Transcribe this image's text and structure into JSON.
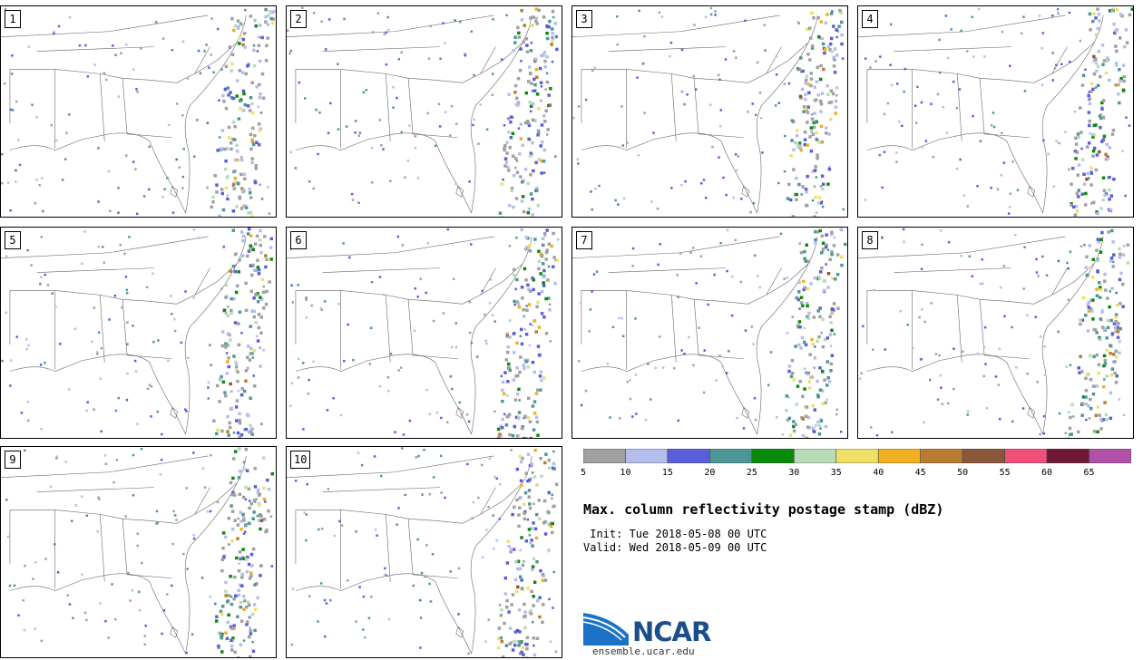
{
  "panels": [
    {
      "label": "1"
    },
    {
      "label": "2"
    },
    {
      "label": "3"
    },
    {
      "label": "4"
    },
    {
      "label": "5"
    },
    {
      "label": "6"
    },
    {
      "label": "7"
    },
    {
      "label": "8"
    },
    {
      "label": "9"
    },
    {
      "label": "10"
    }
  ],
  "colorbar": {
    "ticks": [
      "5",
      "10",
      "15",
      "20",
      "25",
      "30",
      "35",
      "40",
      "45",
      "50",
      "55",
      "60",
      "65"
    ],
    "colors": [
      "#a0a0a0",
      "#b4bdec",
      "#5a5ed8",
      "#4e9696",
      "#0a8a0a",
      "#b8dcb8",
      "#f0e068",
      "#f0b020",
      "#b87c30",
      "#8c5638",
      "#f05078",
      "#6e1a36",
      "#b050a8"
    ]
  },
  "title": "Max. column reflectivity postage stamp (dBZ)",
  "init": " Init: Tue 2018-05-08 00 UTC",
  "valid": "Valid: Wed 2018-05-09 00 UTC",
  "logo": {
    "name": "NCAR",
    "url": "ensemble.ucar.edu"
  }
}
